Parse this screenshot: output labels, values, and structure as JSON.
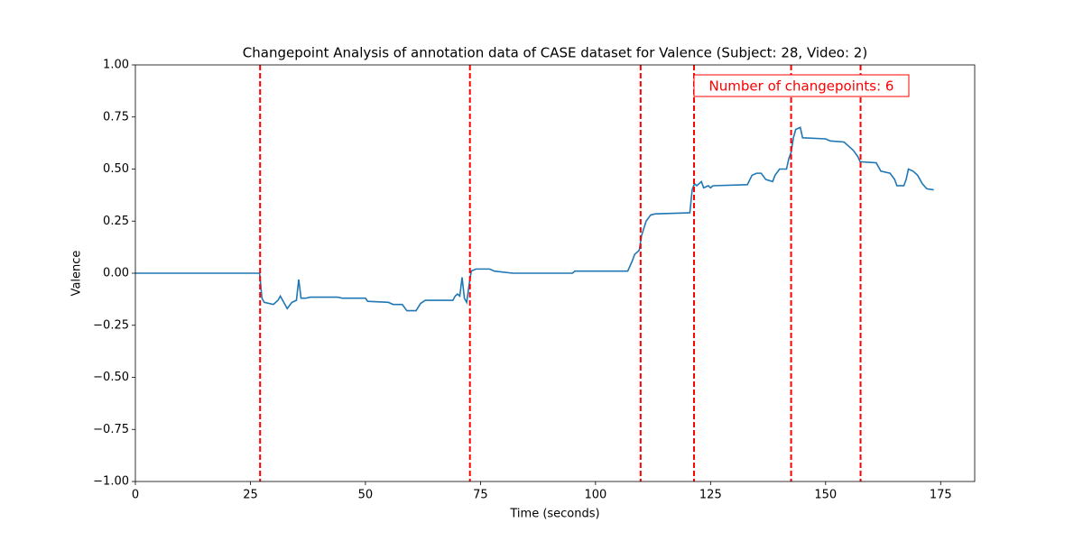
{
  "chart_data": {
    "type": "line",
    "title": "Changepoint Analysis of annotation data of CASE dataset for Valence (Subject: 28, Video: 2)",
    "x_label": "Time (seconds)",
    "y_label": "Valence",
    "xlim": [
      0,
      182.4
    ],
    "ylim": [
      -1,
      1
    ],
    "xticks": [
      0,
      25,
      50,
      75,
      100,
      125,
      150,
      175
    ],
    "yticks": [
      {
        "value": -1,
        "label": "−1.00"
      },
      {
        "value": -0.75,
        "label": "−0.75"
      },
      {
        "value": -0.5,
        "label": "−0.50"
      },
      {
        "value": -0.25,
        "label": "−0.25"
      },
      {
        "value": 0,
        "label": "0.00"
      },
      {
        "value": 0.25,
        "label": "0.25"
      },
      {
        "value": 0.5,
        "label": "0.50"
      },
      {
        "value": 0.75,
        "label": "0.75"
      },
      {
        "value": 1,
        "label": "1.00"
      }
    ],
    "grid": false,
    "series": [
      {
        "color": "#1f77b4",
        "x": [
          0,
          27,
          27.5,
          28,
          30,
          31,
          31.5,
          32,
          33,
          34,
          35,
          35.5,
          36,
          37,
          38,
          44,
          45,
          50,
          50.5,
          55,
          56,
          58,
          59,
          61,
          62,
          63,
          69,
          69.5,
          70,
          70.5,
          71,
          71.5,
          72,
          72.5,
          73,
          74,
          77,
          78,
          82,
          95,
          95.5,
          107,
          108,
          108.5,
          109.5,
          110,
          111,
          112,
          113,
          120.5,
          121,
          121.5,
          122,
          123,
          123.5,
          124.5,
          125,
          125.5,
          133,
          134,
          135,
          136,
          137,
          138.5,
          139,
          140,
          141.5,
          142,
          142.5,
          143,
          143.5,
          144.5,
          145,
          150,
          151,
          154,
          155,
          156,
          157,
          157.5,
          161,
          162,
          164,
          165,
          165.5,
          167,
          167.5,
          168,
          169,
          170,
          171,
          172,
          173.5
        ],
        "values": [
          0,
          0,
          -0.12,
          -0.14,
          -0.15,
          -0.13,
          -0.11,
          -0.13,
          -0.17,
          -0.14,
          -0.13,
          -0.03,
          -0.12,
          -0.12,
          -0.115,
          -0.115,
          -0.12,
          -0.12,
          -0.135,
          -0.14,
          -0.15,
          -0.15,
          -0.18,
          -0.18,
          -0.145,
          -0.13,
          -0.13,
          -0.11,
          -0.1,
          -0.11,
          -0.02,
          -0.12,
          -0.14,
          -0.06,
          0.01,
          0.02,
          0.02,
          0.01,
          0,
          0,
          0.01,
          0.01,
          0.06,
          0.09,
          0.11,
          0.18,
          0.25,
          0.28,
          0.285,
          0.29,
          0.4,
          0.43,
          0.42,
          0.44,
          0.41,
          0.42,
          0.41,
          0.42,
          0.425,
          0.47,
          0.48,
          0.48,
          0.45,
          0.44,
          0.47,
          0.5,
          0.5,
          0.55,
          0.58,
          0.65,
          0.69,
          0.7,
          0.65,
          0.645,
          0.635,
          0.63,
          0.61,
          0.59,
          0.56,
          0.535,
          0.53,
          0.49,
          0.48,
          0.45,
          0.42,
          0.42,
          0.45,
          0.5,
          0.49,
          0.47,
          0.43,
          0.405,
          0.4
        ]
      }
    ],
    "changepoints": [
      27.1,
      72.7,
      109.8,
      121.4,
      142.5,
      157.6
    ],
    "changepoint_color": "#ff0000",
    "annotation": "Number of changepoints: 6"
  }
}
